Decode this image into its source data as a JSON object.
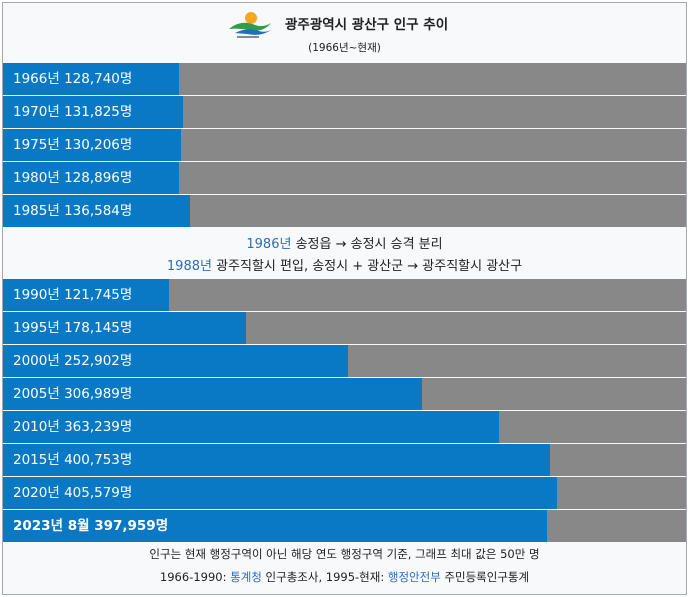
{
  "header": {
    "title": "광주광역시 광산구 인구 추이",
    "subtitle": "(1966년~현재)",
    "logo_icon": "gwangsan-district-logo-icon"
  },
  "colors": {
    "bar": "#0a79c5",
    "track": "#888888",
    "link": "#2f6bbd",
    "background": "#f8f9fa"
  },
  "chart_data": {
    "type": "bar",
    "orientation": "horizontal",
    "max_value": 500000,
    "unit": "명",
    "groups": [
      {
        "rows": [
          {
            "label": "1966년 128,740명",
            "value": 128740
          },
          {
            "label": "1970년 131,825명",
            "value": 131825
          },
          {
            "label": "1975년 130,206명",
            "value": 130206
          },
          {
            "label": "1980년 128,896명",
            "value": 128896
          },
          {
            "label": "1985년 136,584명",
            "value": 136584
          }
        ]
      },
      {
        "rows": [
          {
            "label": "1990년 121,745명",
            "value": 121745
          },
          {
            "label": "1995년 178,145명",
            "value": 178145
          },
          {
            "label": "2000년 252,902명",
            "value": 252902
          },
          {
            "label": "2005년 306,989명",
            "value": 306989
          },
          {
            "label": "2010년 363,239명",
            "value": 363239
          },
          {
            "label": "2015년 400,753명",
            "value": 400753
          },
          {
            "label": "2020년 405,579명",
            "value": 405579
          },
          {
            "label": "2023년 8월 397,959명",
            "value": 397959,
            "bold": true
          }
        ]
      }
    ]
  },
  "notes": {
    "line1_year": "1986년",
    "line1_text": " 송정읍 → 송정시 승격 분리",
    "line2_year": "1988년",
    "line2_text": " 광주직할시 편입, 송정시 + 광산군 → 광주직할시 광산구"
  },
  "footer": {
    "line1": "인구는 현재 행정구역이 아닌 해당 연도 행정구역 기준, 그래프 최대 값은 50만 명",
    "line2_prefix": "1966-1990: ",
    "line2_link1": "통계청",
    "line2_mid": " 인구총조사, 1995-현재: ",
    "line2_link2": "행정안전부",
    "line2_suffix": " 주민등록인구통계"
  }
}
